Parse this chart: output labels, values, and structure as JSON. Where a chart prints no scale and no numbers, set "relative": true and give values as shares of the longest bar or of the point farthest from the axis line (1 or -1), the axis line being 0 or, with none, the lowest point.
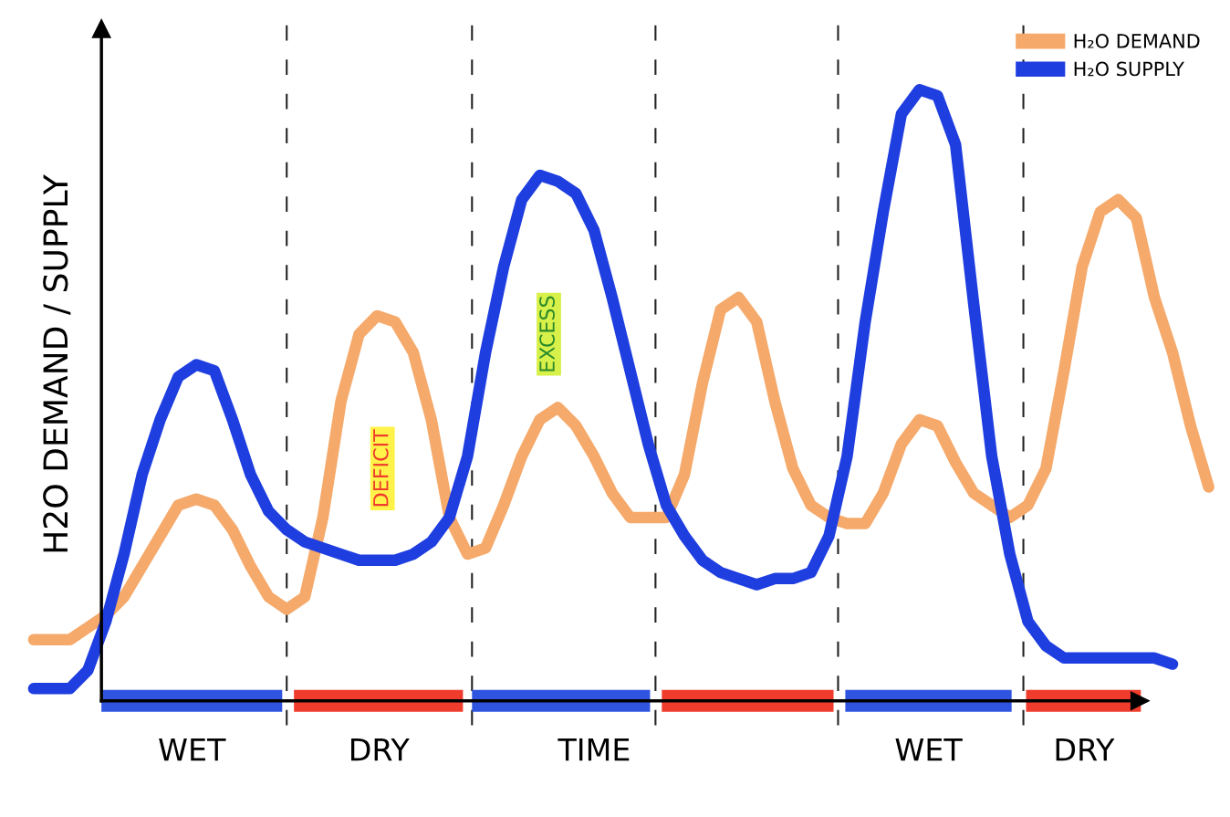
{
  "chart_data": {
    "type": "line",
    "relative": true,
    "xlabel": "TIME",
    "ylabel": "H2O DEMAND / SUPPLY",
    "categories": [
      null,
      null,
      null,
      null,
      null,
      null,
      null,
      null,
      null,
      null,
      null,
      null,
      null,
      null,
      null,
      null,
      null,
      null,
      null,
      null,
      null,
      null,
      null,
      null,
      null,
      null,
      null,
      null,
      null,
      null,
      null,
      null,
      null,
      null,
      null,
      null,
      null,
      null,
      null,
      null,
      null,
      null,
      null,
      null,
      null,
      null,
      null,
      null,
      null,
      null,
      null,
      null,
      null,
      null,
      null,
      null,
      null,
      null,
      null,
      null,
      null,
      null,
      null,
      null,
      null,
      null
    ],
    "series": [
      {
        "name": "H₂O DEMAND",
        "color": "#f5a96a",
        "values": [
          0.1,
          0.1,
          0.1,
          0.12,
          0.14,
          0.17,
          0.22,
          0.27,
          0.32,
          0.33,
          0.32,
          0.28,
          0.22,
          0.17,
          0.15,
          0.17,
          0.3,
          0.49,
          0.6,
          0.63,
          0.62,
          0.57,
          0.46,
          0.3,
          0.24,
          0.25,
          0.32,
          0.4,
          0.46,
          0.48,
          0.45,
          0.4,
          0.34,
          0.3,
          0.3,
          0.3,
          0.37,
          0.52,
          0.64,
          0.66,
          0.62,
          0.49,
          0.38,
          0.32,
          0.3,
          0.29,
          0.29,
          0.34,
          0.42,
          0.46,
          0.45,
          0.39,
          0.34,
          0.32,
          0.3,
          0.32,
          0.38,
          0.54,
          0.71,
          0.8,
          0.82,
          0.79,
          0.66,
          0.57,
          0.45,
          0.35
        ]
      },
      {
        "name": "H₂O SUPPLY",
        "color": "#1f3ee0",
        "values": [
          0.02,
          0.02,
          0.02,
          0.05,
          0.13,
          0.24,
          0.37,
          0.46,
          0.53,
          0.55,
          0.54,
          0.46,
          0.37,
          0.31,
          0.28,
          0.26,
          0.25,
          0.24,
          0.23,
          0.23,
          0.23,
          0.24,
          0.26,
          0.3,
          0.4,
          0.57,
          0.71,
          0.82,
          0.86,
          0.85,
          0.83,
          0.77,
          0.66,
          0.54,
          0.42,
          0.32,
          0.27,
          0.23,
          0.21,
          0.2,
          0.19,
          0.2,
          0.2,
          0.21,
          0.27,
          0.4,
          0.62,
          0.8,
          0.96,
          1,
          0.99,
          0.91,
          0.65,
          0.4,
          0.24,
          0.13,
          0.09,
          0.07,
          0.07,
          0.07,
          0.07,
          0.07,
          0.07,
          0.06,
          null,
          null
        ]
      }
    ],
    "annotations": [
      "DEFICIT",
      "EXCESS",
      "WET",
      "DRY",
      "WET",
      "DRY"
    ],
    "legend": "top right"
  }
}
